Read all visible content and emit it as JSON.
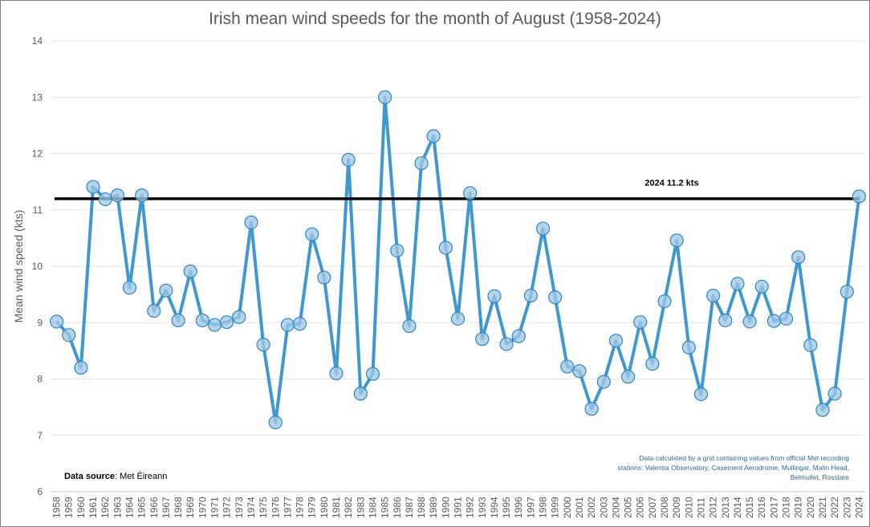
{
  "chart_data": {
    "type": "line",
    "title": "Irish mean wind speeds for the month of August (1958-2024)",
    "xlabel": "",
    "ylabel": "Mean wind speed (kts)",
    "ylim": [
      6,
      14
    ],
    "yticks": [
      "6",
      "7",
      "8",
      "9",
      "10",
      "11",
      "12",
      "13",
      "14"
    ],
    "grid": true,
    "categories": [
      "1958",
      "1959",
      "1960",
      "1961",
      "1962",
      "1963",
      "1964",
      "1965",
      "1966",
      "1967",
      "1968",
      "1969",
      "1970",
      "1971",
      "1972",
      "1973",
      "1974",
      "1975",
      "1976",
      "1977",
      "1978",
      "1979",
      "1980",
      "1981",
      "1982",
      "1983",
      "1984",
      "1985",
      "1986",
      "1987",
      "1988",
      "1989",
      "1990",
      "1991",
      "1992",
      "1993",
      "1994",
      "1995",
      "1996",
      "1997",
      "1998",
      "1999",
      "2000",
      "2001",
      "2002",
      "2003",
      "2004",
      "2005",
      "2006",
      "2007",
      "2008",
      "2009",
      "2010",
      "2011",
      "2012",
      "2013",
      "2014",
      "2015",
      "2016",
      "2017",
      "2018",
      "2019",
      "2020",
      "2021",
      "2022",
      "2023",
      "2024"
    ],
    "series": [
      {
        "name": "Mean wind speed",
        "color": "#3f98cf",
        "values": [
          9.02,
          8.78,
          8.2,
          11.41,
          11.19,
          11.26,
          9.62,
          11.26,
          9.21,
          9.57,
          9.04,
          9.91,
          9.04,
          8.96,
          9.01,
          9.1,
          10.78,
          8.61,
          7.23,
          8.96,
          8.98,
          10.57,
          9.8,
          8.1,
          11.89,
          7.74,
          8.09,
          13.0,
          10.28,
          8.94,
          11.83,
          12.31,
          10.33,
          9.07,
          11.3,
          8.71,
          9.47,
          8.62,
          8.76,
          9.48,
          10.67,
          9.45,
          8.22,
          8.14,
          7.47,
          7.95,
          8.68,
          8.04,
          9.01,
          8.27,
          9.38,
          10.46,
          8.56,
          7.73,
          9.48,
          9.04,
          9.69,
          9.02,
          9.64,
          9.03,
          9.07,
          10.16,
          8.6,
          7.45,
          7.74,
          9.55,
          11.24
        ]
      }
    ],
    "reference_line": {
      "value": 11.2,
      "label": "2024 11.2 kts",
      "color": "#000000"
    },
    "annotations": {
      "source_bold": "Data source",
      "source_rest": ": Met Éireann",
      "note_lines": [
        "Data calculated by a grid containing values from official Met recording",
        "stations: Valentia Observatory, Casement Aerodrome, Mullingar, Malin Head,",
        "Belmullet, Rosslare"
      ]
    }
  }
}
